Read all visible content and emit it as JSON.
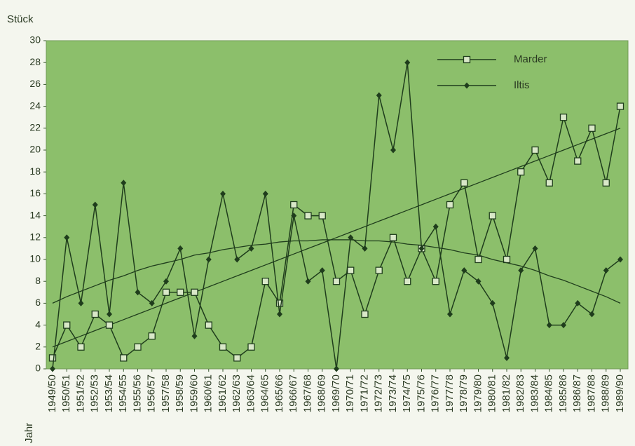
{
  "chart_data": {
    "type": "line",
    "y_axis_label": "Stück",
    "x_axis_label": "Jahr",
    "categories": [
      "1949/50",
      "1950/51",
      "1951/52",
      "1952/53",
      "1953/54",
      "1954/55",
      "1955/56",
      "1956/57",
      "1957/58",
      "1958/59",
      "1959/60",
      "1960/61",
      "1961/62",
      "1962/63",
      "1963/64",
      "1964/65",
      "1965/66",
      "1966/67",
      "1967/68",
      "1968/69",
      "1969/70",
      "1970/71",
      "1971/72",
      "1972/73",
      "1973/74",
      "1974/75",
      "1975/76",
      "1976/77",
      "1977/78",
      "1978/79",
      "1979/80",
      "1980/81",
      "1981/82",
      "1982/83",
      "1983/84",
      "1984/85",
      "1985/86",
      "1986/87",
      "1987/88",
      "1988/89",
      "1989/90"
    ],
    "series": [
      {
        "name": "Marder",
        "color": "#1f3d1c",
        "marker": "square",
        "values": [
          1,
          4,
          2,
          5,
          4,
          1,
          2,
          3,
          7,
          7,
          7,
          4,
          2,
          1,
          2,
          8,
          6,
          15,
          14,
          14,
          8,
          9,
          5,
          9,
          12,
          8,
          11,
          8,
          15,
          17,
          10,
          14,
          10,
          18,
          20,
          17,
          23,
          19,
          22,
          17,
          24
        ],
        "trend": [
          2,
          2.5,
          3,
          3.5,
          4,
          4.5,
          5,
          5.5,
          6,
          6.5,
          7,
          7.5,
          8,
          8.5,
          9,
          9.5,
          10,
          10.5,
          11,
          11.5,
          12,
          12.5,
          13,
          13.5,
          14,
          14.5,
          15,
          15.5,
          16,
          16.5,
          17,
          17.5,
          18,
          18.5,
          19,
          19.5,
          20,
          20.5,
          21,
          21.5,
          22
        ]
      },
      {
        "name": "Iltis",
        "color": "#1f3d1c",
        "marker": "diamond",
        "values": [
          0,
          12,
          6,
          15,
          5,
          17,
          7,
          6,
          8,
          11,
          3,
          10,
          16,
          10,
          11,
          16,
          5,
          14,
          8,
          9,
          0,
          12,
          11,
          25,
          20,
          28,
          11,
          13,
          5,
          9,
          8,
          6,
          1,
          9,
          11,
          4,
          4,
          6,
          5,
          9,
          10
        ],
        "trend": [
          6.0,
          6.6,
          7.1,
          7.6,
          8.1,
          8.5,
          9.0,
          9.4,
          9.7,
          10.0,
          10.4,
          10.6,
          10.9,
          11.1,
          11.3,
          11.4,
          11.6,
          11.7,
          11.7,
          11.8,
          11.8,
          11.8,
          11.7,
          11.7,
          11.6,
          11.4,
          11.3,
          11.1,
          10.9,
          10.6,
          10.4,
          10.0,
          9.7,
          9.4,
          9.0,
          8.5,
          8.1,
          7.6,
          7.1,
          6.6,
          6.0
        ]
      }
    ],
    "ylim": [
      0,
      30
    ],
    "yticks": [
      0,
      2,
      4,
      6,
      8,
      10,
      12,
      14,
      16,
      18,
      20,
      22,
      24,
      26,
      28,
      30
    ],
    "grid": false,
    "legend": "upper right",
    "plot_background": "#8cbf6b"
  }
}
